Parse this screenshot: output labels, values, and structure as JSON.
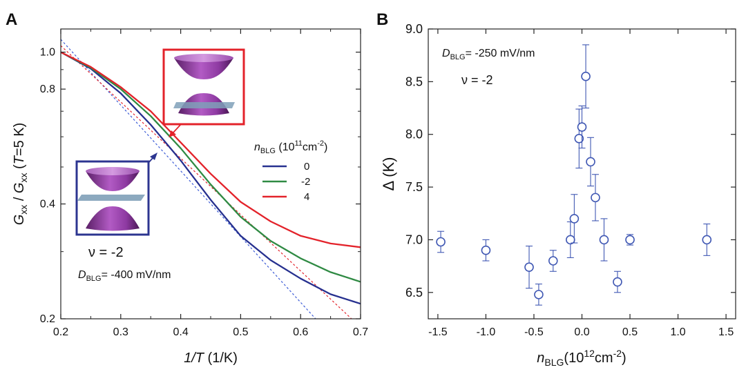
{
  "chart_data": [
    {
      "panel_label": "A",
      "type": "line",
      "xlabel_main": "1/T",
      "xlabel_unit": " (1/K)",
      "ylabel": {
        "g1": "G",
        "s1": "xx",
        "sep": " / ",
        "g2": "G",
        "s2": "xx",
        "paren_open": " (",
        "t": "T",
        "paren_close": "=5 K)"
      },
      "xlim": [
        0.2,
        0.7
      ],
      "ylim": [
        0.2,
        1.15
      ],
      "yscale": "log",
      "xticks": [
        "0.2",
        "0.3",
        "0.4",
        "0.5",
        "0.6",
        "0.7"
      ],
      "yticks": [
        "0.2",
        "0.4",
        "0.8",
        "1.0"
      ],
      "legend": {
        "title_main": "n",
        "title_sub": "BLG",
        "title_unit": " (10",
        "title_exp": "11",
        "title_unit2": "cm",
        "title_exp2": "-2",
        "title_close": ")",
        "position": "middle-right"
      },
      "series": [
        {
          "name": "0",
          "color": "#26308f",
          "x": [
            0.2,
            0.25,
            0.3,
            0.35,
            0.4,
            0.45,
            0.5,
            0.55,
            0.6,
            0.65,
            0.7
          ],
          "y": [
            1.0,
            0.905,
            0.78,
            0.645,
            0.52,
            0.41,
            0.33,
            0.285,
            0.255,
            0.232,
            0.219
          ]
        },
        {
          "name": "-2",
          "color": "#2f8a43",
          "x": [
            0.2,
            0.25,
            0.3,
            0.35,
            0.4,
            0.45,
            0.5,
            0.55,
            0.6,
            0.65,
            0.7
          ],
          "y": [
            1.0,
            0.91,
            0.8,
            0.68,
            0.56,
            0.45,
            0.37,
            0.32,
            0.288,
            0.265,
            0.25
          ]
        },
        {
          "name": "4",
          "color": "#e3222a",
          "x": [
            0.2,
            0.25,
            0.3,
            0.35,
            0.4,
            0.45,
            0.5,
            0.55,
            0.6,
            0.65,
            0.7
          ],
          "y": [
            1.0,
            0.915,
            0.81,
            0.7,
            0.58,
            0.48,
            0.405,
            0.36,
            0.33,
            0.315,
            0.308
          ]
        }
      ],
      "fit_lines": [
        {
          "color": "#3b5bd6",
          "x": [
            0.2,
            0.625
          ],
          "y": [
            1.08,
            0.2
          ]
        },
        {
          "color": "#e3222a",
          "x": [
            0.2,
            0.7
          ],
          "y": [
            1.04,
            0.19
          ]
        }
      ],
      "annotations": {
        "nu_symbol": "ν",
        "nu_value": " = -2",
        "d_main": "D",
        "d_sub": "BLG",
        "d_value": "= -400 mV/nm"
      },
      "insets": [
        {
          "name": "gapped-bands",
          "border_color": "#2c3590",
          "arrow_target": [
            0.365,
            0.6
          ]
        },
        {
          "name": "doped-bands",
          "border_color": "#e3222a",
          "arrow_target": [
            0.37,
            0.63
          ]
        }
      ]
    },
    {
      "panel_label": "B",
      "type": "scatter",
      "xlabel": {
        "main": "n",
        "sub": "BLG",
        "unit": "(10",
        "exp": "12",
        "unit2": "cm",
        "exp2": "-2",
        "close": ")"
      },
      "ylabel": "Δ (K)",
      "xlim": [
        -1.6,
        1.6
      ],
      "ylim": [
        6.25,
        9.0
      ],
      "xticks": [
        "-1.5",
        "-1.0",
        "-0.5",
        "0.0",
        "0.5",
        "1.0",
        "1.5"
      ],
      "yticks": [
        "6.5",
        "7.0",
        "7.5",
        "8.0",
        "8.5",
        "9.0"
      ],
      "marker_color": "#3f57b3",
      "points": [
        {
          "x": -1.47,
          "y": 6.98,
          "err": 0.1
        },
        {
          "x": -1.0,
          "y": 6.9,
          "err": 0.1
        },
        {
          "x": -0.55,
          "y": 6.74,
          "err": 0.2
        },
        {
          "x": -0.45,
          "y": 6.48,
          "err": 0.1
        },
        {
          "x": -0.3,
          "y": 6.8,
          "err": 0.1
        },
        {
          "x": -0.12,
          "y": 7.0,
          "err": 0.17
        },
        {
          "x": -0.08,
          "y": 7.2,
          "err": 0.23
        },
        {
          "x": -0.03,
          "y": 7.96,
          "err": 0.28
        },
        {
          "x": 0.0,
          "y": 8.07,
          "err": 0.2
        },
        {
          "x": 0.04,
          "y": 8.55,
          "err": 0.3
        },
        {
          "x": 0.09,
          "y": 7.74,
          "err": 0.23
        },
        {
          "x": 0.14,
          "y": 7.4,
          "err": 0.22
        },
        {
          "x": 0.23,
          "y": 7.0,
          "err": 0.2
        },
        {
          "x": 0.37,
          "y": 6.6,
          "err": 0.1
        },
        {
          "x": 0.5,
          "y": 7.0,
          "err": 0.05
        },
        {
          "x": 1.3,
          "y": 7.0,
          "err": 0.15
        }
      ],
      "annotations": {
        "d_main": "D",
        "d_sub": "BLG",
        "d_value": "= -250 mV/nm",
        "nu_symbol": "ν",
        "nu_value": " = -2"
      }
    }
  ]
}
